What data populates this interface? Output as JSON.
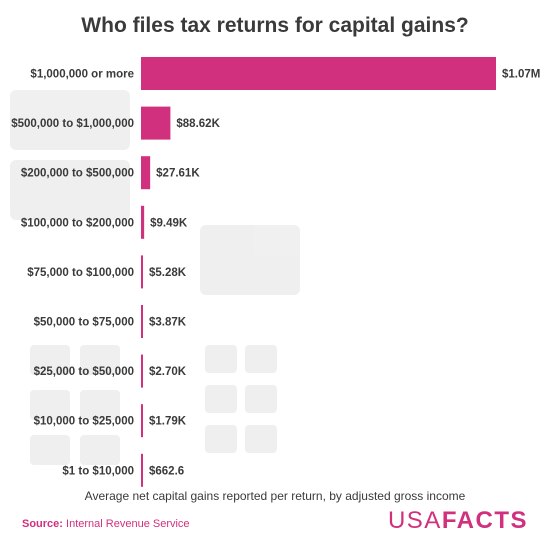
{
  "title": "Who files tax returns for capital gains?",
  "caption": "Average net capital gains reported per return, by adjusted gross income",
  "source": {
    "label": "Source:",
    "text": "Internal Revenue Service"
  },
  "logo": {
    "part1": "USA",
    "part2": "FACTS"
  },
  "colors": {
    "bar": "#d0307d",
    "text": "#3a3a3a"
  },
  "chart_data": {
    "type": "bar",
    "orientation": "horizontal",
    "title": "Who files tax returns for capital gains?",
    "categories": [
      "$1,000,000 or more",
      "$500,000 to $1,000,000",
      "$200,000 to $500,000",
      "$100,000 to $200,000",
      "$75,000 to $100,000",
      "$50,000 to $75,000",
      "$25,000 to $50,000",
      "$10,000 to $25,000",
      "$1 to $10,000"
    ],
    "values": [
      1070000,
      88620,
      27610,
      9490,
      5280,
      3870,
      2700,
      1790,
      662.6
    ],
    "value_labels": [
      "$1.07M",
      "$88.62K",
      "$27.61K",
      "$9.49K",
      "$5.28K",
      "$3.87K",
      "$2.70K",
      "$1.79K",
      "$662.6"
    ],
    "xlim": [
      0,
      1070000
    ],
    "grid": false,
    "legend": "none"
  }
}
